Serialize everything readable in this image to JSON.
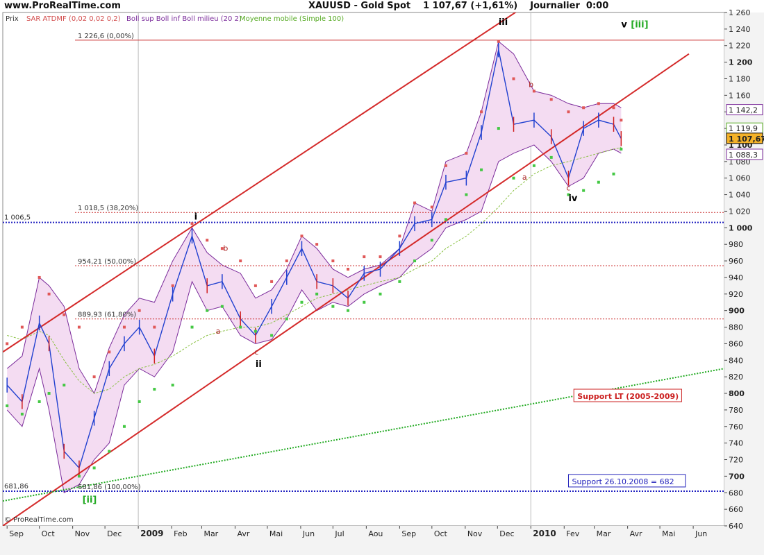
{
  "header": {
    "site": "www.ProRealTime.com",
    "symbol": "XAUUSD - Gold Spot",
    "price_change": "1 107,67 (+1,61%)",
    "period": "Journalier  0:00"
  },
  "legend": {
    "price": "Prix",
    "sar": "SAR ATDMF (0,02 0,02 0,2)",
    "bollinger": "Boll sup Boll inf Boll milieu (20 2)",
    "ma": "Moyenne mobile (Simple 100)"
  },
  "copyright": "© ProRealTime.com",
  "colors": {
    "channel": "#d42a2a",
    "fib": "#cc3333",
    "support_blue": "#2020c0",
    "support_lt": "#22aa22",
    "bollinger_fill": "#f4dcf2",
    "bollinger_line": "#7a2a9a",
    "sar_up": "#44c844",
    "sar_down": "#e05858",
    "candles_up": "#2040d0",
    "candles_down": "#d02020"
  },
  "chart_data": {
    "type": "line",
    "title": "XAUUSD - Gold Spot",
    "ylim": [
      640,
      1260
    ],
    "y_ticks": [
      "1 260",
      "1 240",
      "1 220",
      "1 200",
      "1 180",
      "1 160",
      "1 140",
      "1 120",
      "1 100",
      "1 080",
      "1 060",
      "1 040",
      "1 020",
      "1 000",
      "980",
      "960",
      "940",
      "920",
      "900",
      "880",
      "860",
      "840",
      "820",
      "800",
      "780",
      "760",
      "740",
      "720",
      "700",
      "680",
      "660",
      "640"
    ],
    "x_labels": [
      "Sep",
      "Oct",
      "Nov",
      "Dec",
      "2009",
      "Feb",
      "Mar",
      "Avr",
      "Mai",
      "Jun",
      "Jul",
      "Aou",
      "Sep",
      "Oct",
      "Nov",
      "Dec",
      "2010",
      "Fev",
      "Mar",
      "Avr",
      "Mai",
      "Jun"
    ],
    "series": [
      {
        "name": "XAUUSD",
        "dates": [
          "2008-09-01",
          "2008-09-15",
          "2008-10-01",
          "2008-10-10",
          "2008-10-24",
          "2008-11-07",
          "2008-11-21",
          "2008-12-05",
          "2008-12-19",
          "2009-01-02",
          "2009-01-16",
          "2009-02-02",
          "2009-02-20",
          "2009-03-06",
          "2009-03-20",
          "2009-04-06",
          "2009-04-20",
          "2009-05-05",
          "2009-05-19",
          "2009-06-02",
          "2009-06-16",
          "2009-07-01",
          "2009-07-15",
          "2009-07-30",
          "2009-08-14",
          "2009-09-01",
          "2009-09-15",
          "2009-10-01",
          "2009-10-14",
          "2009-11-02",
          "2009-11-16",
          "2009-12-02",
          "2009-12-16",
          "2010-01-04",
          "2010-01-20",
          "2010-02-05",
          "2010-02-19",
          "2010-03-05",
          "2010-03-19",
          "2010-03-26"
        ],
        "values": [
          810,
          790,
          885,
          860,
          730,
          710,
          770,
          830,
          860,
          880,
          845,
          920,
          990,
          930,
          935,
          890,
          870,
          905,
          940,
          975,
          935,
          930,
          915,
          945,
          950,
          975,
          1005,
          1010,
          1055,
          1060,
          1115,
          1215,
          1125,
          1130,
          1110,
          1060,
          1120,
          1130,
          1125,
          1107.67
        ]
      }
    ],
    "bollinger_upper": [
      830,
      845,
      940,
      930,
      905,
      830,
      800,
      855,
      895,
      915,
      910,
      960,
      1000,
      970,
      955,
      945,
      915,
      925,
      950,
      990,
      975,
      950,
      940,
      950,
      955,
      975,
      1030,
      1020,
      1080,
      1090,
      1140,
      1225,
      1210,
      1165,
      1160,
      1150,
      1145,
      1150,
      1150,
      1145
    ],
    "bollinger_lower": [
      780,
      760,
      830,
      780,
      680,
      690,
      720,
      740,
      810,
      830,
      820,
      850,
      935,
      900,
      905,
      870,
      860,
      865,
      890,
      925,
      900,
      910,
      905,
      920,
      930,
      940,
      960,
      975,
      1000,
      1010,
      1020,
      1080,
      1090,
      1100,
      1080,
      1050,
      1060,
      1090,
      1095,
      1090
    ],
    "sma100": [
      870,
      865,
      875,
      870,
      840,
      815,
      800,
      805,
      820,
      830,
      835,
      845,
      860,
      870,
      875,
      880,
      880,
      885,
      895,
      905,
      915,
      920,
      925,
      930,
      935,
      940,
      950,
      960,
      975,
      990,
      1005,
      1025,
      1045,
      1065,
      1075,
      1080,
      1085,
      1090,
      1095,
      1097
    ],
    "sar_up": [
      785,
      775,
      790,
      800,
      810,
      700,
      710,
      730,
      760,
      790,
      805,
      810,
      880,
      900,
      905,
      880,
      875,
      870,
      890,
      910,
      920,
      905,
      900,
      910,
      920,
      935,
      960,
      985,
      1010,
      1040,
      1070,
      1120,
      1060,
      1075,
      1085,
      1040,
      1045,
      1055,
      1065,
      1095
    ],
    "sar_down": [
      860,
      880,
      940,
      920,
      895,
      880,
      820,
      850,
      880,
      900,
      880,
      930,
      1005,
      985,
      975,
      960,
      930,
      935,
      960,
      990,
      980,
      960,
      950,
      965,
      965,
      990,
      1030,
      1025,
      1075,
      1090,
      1140,
      1225,
      1180,
      1165,
      1155,
      1140,
      1145,
      1150,
      1145,
      1130
    ],
    "channel": [
      {
        "x1": "2008-08-28",
        "y1": 850,
        "x2": "2010-01-04",
        "y2": 1275
      },
      {
        "x1": "2008-08-28",
        "y1": 640,
        "x2": "2010-05-28",
        "y2": 1210
      }
    ],
    "fibonacci": [
      {
        "value": 1226.6,
        "label": "1 226,6 (0,00%)",
        "line": "solid"
      },
      {
        "value": 1018.5,
        "label": "1 018,5 (38,20%)",
        "line": "dotted"
      },
      {
        "value": 954.21,
        "label": "954,21 (50,00%)",
        "line": "dotted"
      },
      {
        "value": 889.93,
        "label": "889,93 (61,80%)",
        "line": "dotted"
      },
      {
        "value": 681.86,
        "label": "681,86 (100,00%)",
        "line": "dotted"
      }
    ],
    "horizontal_supports": [
      {
        "value": 1006.5,
        "label": "1 006,5"
      },
      {
        "value": 681.86,
        "label": "681,86"
      }
    ],
    "support_lt": [
      {
        "x": "2008-08-28",
        "y": 670
      },
      {
        "x": "2010-06-30",
        "y": 830
      }
    ],
    "boxes": [
      {
        "label": "Support LT (2005-2009)",
        "style": "red",
        "x": "2010-02-10",
        "y": 795
      },
      {
        "label": "Support 26.10.2008 = 682",
        "style": "blue",
        "x": "2010-02-05",
        "y": 692
      }
    ],
    "wave_labels": [
      {
        "text": "[ii]",
        "x": "2008-11-10",
        "y": 668,
        "color": "#22aa22",
        "bold": true
      },
      {
        "text": "i",
        "x": "2009-02-22",
        "y": 1010,
        "color": "#000000",
        "bold": true
      },
      {
        "text": "ii",
        "x": "2009-04-20",
        "y": 832,
        "color": "#000000",
        "bold": true
      },
      {
        "text": "iii",
        "x": "2009-12-02",
        "y": 1245,
        "color": "#000000",
        "bold": true
      },
      {
        "text": "iv",
        "x": "2010-02-05",
        "y": 1032,
        "color": "#000000",
        "bold": true
      },
      {
        "text": "v",
        "x": "2010-03-26",
        "y": 1242,
        "color": "#000000",
        "bold": true
      },
      {
        "text": "[iii]",
        "x": "2010-04-04",
        "y": 1242,
        "color": "#22aa22",
        "bold": true
      },
      {
        "text": "a",
        "x": "2009-03-14",
        "y": 872,
        "color": "#aa2222",
        "bold": false
      },
      {
        "text": "b",
        "x": "2009-03-21",
        "y": 972,
        "color": "#aa2222",
        "bold": false
      },
      {
        "text": "c",
        "x": "2009-04-19",
        "y": 847,
        "color": "#aa2222",
        "bold": false
      },
      {
        "text": "a",
        "x": "2009-12-24",
        "y": 1058,
        "color": "#aa2222",
        "bold": false
      },
      {
        "text": "b",
        "x": "2009-12-30",
        "y": 1170,
        "color": "#aa2222",
        "bold": false
      },
      {
        "text": "c",
        "x": "2010-02-03",
        "y": 1045,
        "color": "#aa2222",
        "bold": false
      }
    ],
    "price_tags": [
      {
        "value": 1142.2,
        "label": "1 142,2",
        "color": "#7a2a9a",
        "fill": "#ffffff"
      },
      {
        "value": 1119.9,
        "label": "1 119,9",
        "color": "#55aa22",
        "fill": "#ffffff"
      },
      {
        "value": 1107.67,
        "label": "1 107,67",
        "color": "#000000",
        "fill": "#f4b228"
      },
      {
        "value": 1088.3,
        "label": "1 088,3",
        "color": "#7a2a9a",
        "fill": "#ffffff"
      }
    ]
  }
}
